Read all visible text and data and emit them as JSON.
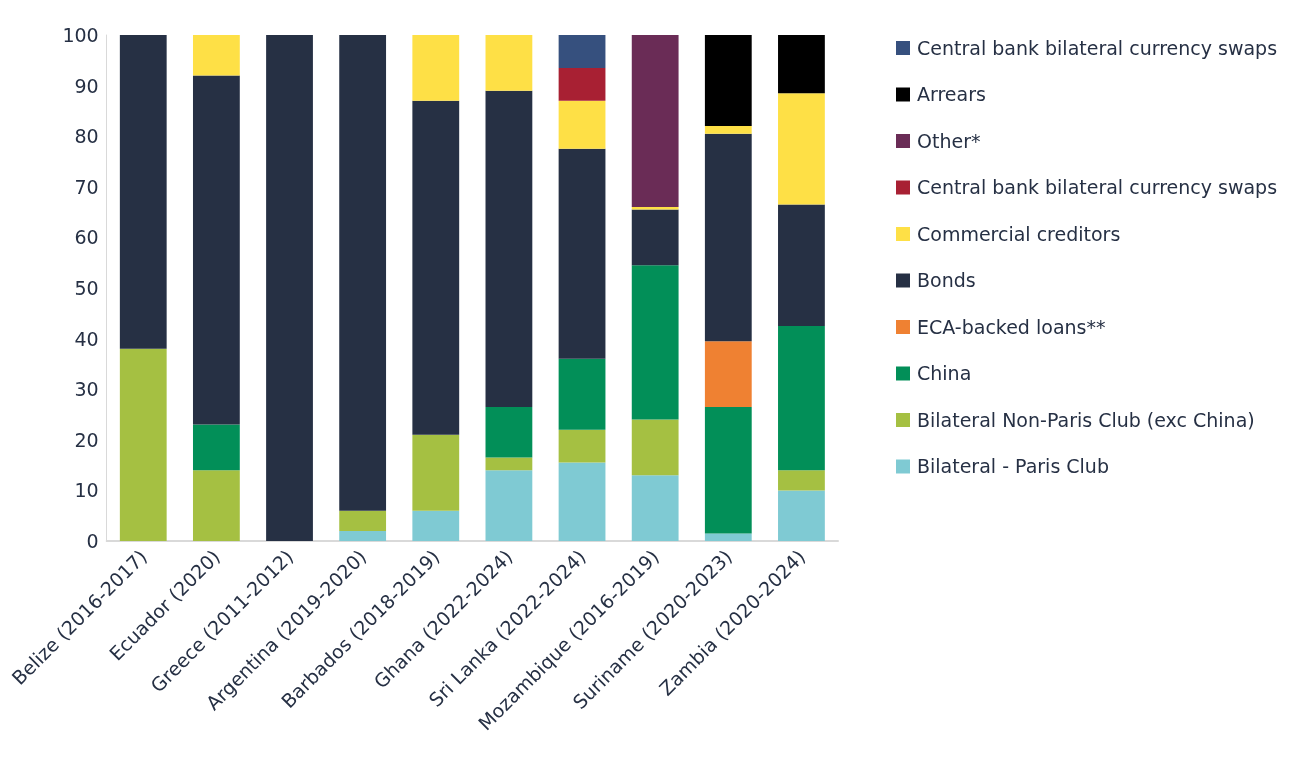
{
  "chart_data": {
    "type": "bar",
    "stacked": true,
    "categories": [
      "Belize (2016-2017)",
      "Ecuador (2020)",
      "Greece (2011-2012)",
      "Argentina (2019-2020)",
      "Barbados (2018-2019)",
      "Ghana (2022-2024)",
      "Sri Lanka (2022-2024)",
      "Mozambique (2016-2019)",
      "Suriname (2020-2023)",
      "Zambia (2020-2024)"
    ],
    "series": [
      {
        "name": "Bilateral - Paris Club",
        "color": "#7fcad3",
        "values": [
          null,
          null,
          null,
          2,
          6,
          14,
          15.5,
          13,
          1.5,
          10
        ]
      },
      {
        "name": "Bilateral Non-Paris Club (exc China)",
        "color": "#a5c042",
        "values": [
          38,
          14,
          null,
          4,
          15,
          2.5,
          6.5,
          11,
          null,
          4
        ]
      },
      {
        "name": "China",
        "color": "#028f58",
        "values": [
          null,
          9,
          null,
          null,
          null,
          10,
          14,
          30.5,
          25,
          28.5
        ]
      },
      {
        "name": "ECA-backed loans**",
        "color": "#ef8132",
        "values": [
          null,
          null,
          null,
          null,
          null,
          null,
          null,
          null,
          13,
          null
        ]
      },
      {
        "name": "Bonds",
        "color": "#263044",
        "values": [
          62,
          69,
          100,
          94,
          66,
          62.5,
          41.5,
          11,
          41,
          24
        ]
      },
      {
        "name": "Commercial creditors",
        "color": "#fee046",
        "values": [
          null,
          8,
          null,
          null,
          13,
          11,
          9.5,
          0.5,
          1.5,
          22
        ]
      },
      {
        "name": "Central bank bilateral currency swaps",
        "color": "#a82033",
        "values": [
          null,
          null,
          null,
          null,
          null,
          null,
          6.5,
          null,
          null,
          null
        ]
      },
      {
        "name": "Other*",
        "color": "#6a2c56",
        "values": [
          null,
          null,
          null,
          null,
          null,
          null,
          null,
          34,
          null,
          null
        ]
      },
      {
        "name": "Arrears",
        "color": "#000000",
        "values": [
          null,
          null,
          null,
          null,
          null,
          null,
          null,
          null,
          18,
          11.5
        ]
      },
      {
        "name": "Central bank bilateral currency swaps",
        "color": "#36507e",
        "values": [
          null,
          null,
          null,
          null,
          null,
          null,
          6.5,
          null,
          null,
          null
        ]
      }
    ],
    "ylim": [
      0,
      100
    ],
    "yticks": [
      0,
      10,
      20,
      30,
      40,
      50,
      60,
      70,
      80,
      90,
      100
    ],
    "grid": false,
    "legend": "right"
  }
}
